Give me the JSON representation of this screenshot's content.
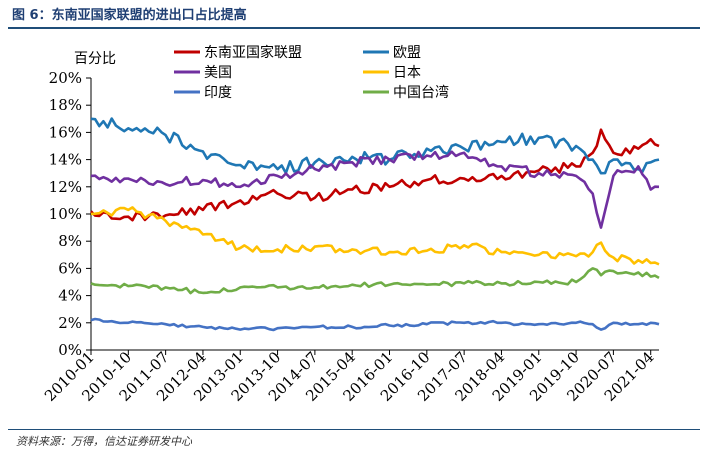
{
  "figure_title": "图 6：东南亚国家联盟的进出口占比提高",
  "source_note": "资料来源：万得，信达证券研发中心",
  "chart_data": {
    "type": "line",
    "y_unit_label": "百分比",
    "ylim": [
      0,
      20
    ],
    "y_ticks": [
      0,
      2,
      4,
      6,
      8,
      10,
      12,
      14,
      16,
      18,
      20
    ],
    "y_tick_labels": [
      "0%",
      "2%",
      "4%",
      "6%",
      "8%",
      "10%",
      "12%",
      "14%",
      "16%",
      "18%",
      "20%"
    ],
    "x_start": "2010-01",
    "x_end": "2021-06",
    "x_tick_labels": [
      "2010-01",
      "2010-10",
      "2011-07",
      "2012-04",
      "2013-01",
      "2013-10",
      "2014-07",
      "2015-04",
      "2016-01",
      "2016-10",
      "2017-07",
      "2018-04",
      "2019-01",
      "2019-10",
      "2020-07",
      "2021-04"
    ],
    "grid": false,
    "legend_position": "top",
    "x_anchor_dates": [
      "2010-01",
      "2010-10",
      "2011-07",
      "2012-04",
      "2013-01",
      "2013-10",
      "2014-07",
      "2015-04",
      "2016-01",
      "2016-10",
      "2017-07",
      "2018-04",
      "2019-01",
      "2019-10",
      "2020-02",
      "2020-04",
      "2020-07",
      "2021-01",
      "2021-04",
      "2021-06"
    ],
    "series": [
      {
        "name": "东南亚国家联盟",
        "color": "#c00000",
        "values": [
          10.2,
          9.8,
          9.9,
          10.3,
          11.0,
          11.5,
          11.2,
          11.8,
          12.0,
          12.5,
          12.6,
          12.8,
          13.2,
          13.5,
          14.5,
          16.2,
          14.5,
          14.8,
          15.5,
          15.0
        ]
      },
      {
        "name": "欧盟",
        "color": "#1f77b4",
        "values": [
          17.0,
          16.3,
          15.8,
          14.6,
          13.6,
          13.3,
          13.8,
          14.2,
          14.0,
          14.8,
          14.8,
          15.3,
          15.6,
          15.0,
          14.0,
          13.0,
          14.0,
          13.3,
          13.8,
          14.0
        ]
      },
      {
        "name": "美国",
        "color": "#7030a0",
        "values": [
          12.8,
          12.6,
          12.2,
          12.5,
          12.0,
          12.8,
          13.3,
          13.8,
          14.0,
          14.3,
          14.5,
          13.5,
          13.0,
          12.8,
          11.5,
          9.0,
          12.8,
          13.5,
          11.8,
          12.0
        ]
      },
      {
        "name": "日本",
        "color": "#ffc000",
        "values": [
          10.0,
          10.3,
          9.5,
          8.5,
          7.5,
          7.4,
          7.6,
          7.4,
          7.2,
          7.3,
          7.7,
          7.2,
          7.0,
          6.9,
          7.2,
          7.9,
          6.8,
          6.6,
          6.4,
          6.3
        ]
      },
      {
        "name": "印度",
        "color": "#4472c4",
        "values": [
          2.2,
          2.0,
          1.9,
          1.7,
          1.5,
          1.6,
          1.7,
          1.7,
          1.8,
          1.9,
          2.0,
          2.0,
          1.9,
          2.0,
          1.9,
          1.5,
          2.0,
          1.9,
          2.0,
          1.9
        ]
      },
      {
        "name": "中国台湾",
        "color": "#70ad47",
        "values": [
          4.9,
          4.7,
          4.6,
          4.2,
          4.6,
          4.6,
          4.6,
          4.8,
          4.8,
          4.8,
          4.9,
          4.9,
          5.0,
          5.0,
          6.0,
          5.5,
          5.8,
          5.7,
          5.4,
          5.3
        ]
      }
    ]
  }
}
